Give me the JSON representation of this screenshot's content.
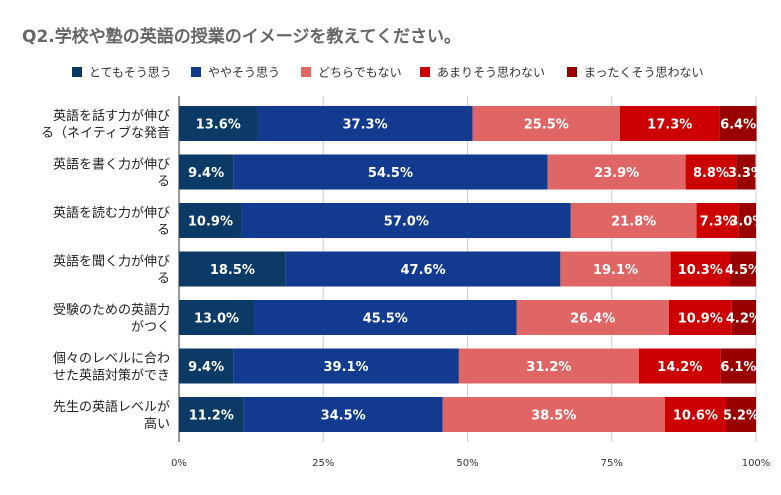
{
  "chart_data": {
    "type": "bar",
    "orientation": "horizontal",
    "stacked": "percent",
    "title": "Q2.学校や塾の英語の授業のイメージを教えてください。",
    "legend_position": "top",
    "xlim": [
      0,
      100
    ],
    "x_ticks": [
      "0%",
      "25%",
      "50%",
      "75%",
      "100%"
    ],
    "grid": true,
    "categories": [
      [
        "英語を話す力が伸び",
        "る（ネイティブな発音"
      ],
      [
        "英語を書く力が伸び",
        "る"
      ],
      [
        "英語を読む力が伸び",
        "る"
      ],
      [
        "英語を聞く力が伸び",
        "る"
      ],
      [
        "受験のための英語力",
        "がつく"
      ],
      [
        "個々のレベルに合わ",
        "せた英語対策ができ"
      ],
      [
        "先生の英語レベルが",
        "高い"
      ]
    ],
    "series": [
      {
        "name": "とてもそう思う",
        "color": "#0c3a66",
        "values": [
          13.6,
          9.4,
          10.9,
          18.5,
          13.0,
          9.4,
          11.2
        ]
      },
      {
        "name": "ややそう思う",
        "color": "#123a8f",
        "values": [
          37.3,
          54.5,
          57.0,
          47.6,
          45.5,
          39.1,
          34.5
        ]
      },
      {
        "name": "どちらでもない",
        "color": "#e06666",
        "values": [
          25.5,
          23.9,
          21.8,
          19.1,
          26.4,
          31.2,
          38.5
        ]
      },
      {
        "name": "あまりそう思わない",
        "color": "#cc0000",
        "values": [
          17.3,
          8.8,
          7.3,
          10.3,
          10.9,
          14.2,
          10.6
        ]
      },
      {
        "name": "まったくそう思わない",
        "color": "#990000",
        "values": [
          6.4,
          3.3,
          3.0,
          4.5,
          4.2,
          6.1,
          5.2
        ]
      }
    ]
  }
}
